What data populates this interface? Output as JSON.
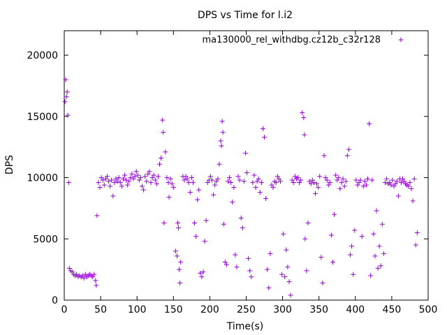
{
  "chart_data": {
    "type": "scatter",
    "title": "DPS vs Time for l.i2",
    "xlabel": "Time(s)",
    "ylabel": "DPS",
    "xlim": [
      0,
      500
    ],
    "ylim": [
      0,
      22000
    ],
    "xticks": [
      0,
      50,
      100,
      150,
      200,
      250,
      300,
      350,
      400,
      450,
      500
    ],
    "yticks": [
      0,
      5000,
      10000,
      15000,
      20000
    ],
    "grid": false,
    "legend_position": "top-right",
    "series": [
      {
        "name": "ma130000_rel_withdbg.cz12b_c32r128",
        "color": "#9400d3",
        "marker": "plus",
        "points": [
          [
            1,
            16200
          ],
          [
            2,
            18000
          ],
          [
            3,
            16600
          ],
          [
            4,
            17000
          ],
          [
            5,
            15100
          ],
          [
            6,
            9600
          ],
          [
            7,
            2600
          ],
          [
            9,
            2400
          ],
          [
            11,
            2300
          ],
          [
            13,
            2100
          ],
          [
            15,
            2000
          ],
          [
            17,
            2100
          ],
          [
            19,
            1900
          ],
          [
            21,
            2000
          ],
          [
            23,
            1900
          ],
          [
            25,
            2000
          ],
          [
            27,
            1800
          ],
          [
            29,
            2100
          ],
          [
            31,
            1900
          ],
          [
            33,
            2000
          ],
          [
            35,
            2100
          ],
          [
            37,
            2000
          ],
          [
            39,
            1900
          ],
          [
            41,
            2100
          ],
          [
            43,
            1600
          ],
          [
            44,
            1200
          ],
          [
            45,
            6900
          ],
          [
            47,
            9600
          ],
          [
            49,
            9200
          ],
          [
            51,
            10000
          ],
          [
            53,
            9800
          ],
          [
            55,
            9400
          ],
          [
            57,
            9900
          ],
          [
            59,
            10100
          ],
          [
            61,
            9700
          ],
          [
            63,
            9300
          ],
          [
            65,
            9800
          ],
          [
            67,
            8500
          ],
          [
            69,
            9600
          ],
          [
            71,
            9900
          ],
          [
            73,
            9700
          ],
          [
            75,
            10000
          ],
          [
            77,
            9600
          ],
          [
            79,
            9300
          ],
          [
            81,
            9900
          ],
          [
            83,
            10200
          ],
          [
            85,
            9800
          ],
          [
            87,
            9400
          ],
          [
            89,
            9700
          ],
          [
            91,
            10000
          ],
          [
            93,
            10300
          ],
          [
            95,
            9900
          ],
          [
            97,
            10100
          ],
          [
            99,
            10500
          ],
          [
            101,
            10200
          ],
          [
            103,
            9800
          ],
          [
            105,
            10000
          ],
          [
            107,
            9300
          ],
          [
            109,
            9000
          ],
          [
            111,
            10100
          ],
          [
            113,
            9700
          ],
          [
            115,
            10300
          ],
          [
            117,
            10500
          ],
          [
            119,
            9600
          ],
          [
            121,
            10000
          ],
          [
            123,
            10200
          ],
          [
            125,
            9800
          ],
          [
            127,
            9500
          ],
          [
            129,
            10100
          ],
          [
            131,
            11100
          ],
          [
            133,
            11600
          ],
          [
            135,
            14700
          ],
          [
            136,
            13700
          ],
          [
            137,
            6300
          ],
          [
            139,
            12100
          ],
          [
            141,
            10000
          ],
          [
            143,
            9600
          ],
          [
            144,
            8400
          ],
          [
            146,
            9900
          ],
          [
            148,
            9500
          ],
          [
            150,
            9200
          ],
          [
            153,
            4000
          ],
          [
            155,
            3600
          ],
          [
            156,
            6300
          ],
          [
            157,
            5900
          ],
          [
            158,
            2500
          ],
          [
            159,
            1400
          ],
          [
            160,
            3100
          ],
          [
            163,
            10100
          ],
          [
            165,
            9800
          ],
          [
            167,
            10100
          ],
          [
            169,
            9900
          ],
          [
            171,
            9600
          ],
          [
            173,
            8800
          ],
          [
            175,
            10000
          ],
          [
            177,
            9600
          ],
          [
            179,
            6300
          ],
          [
            181,
            5200
          ],
          [
            183,
            8200
          ],
          [
            185,
            9000
          ],
          [
            187,
            2200
          ],
          [
            189,
            1900
          ],
          [
            191,
            2300
          ],
          [
            193,
            4800
          ],
          [
            195,
            6500
          ],
          [
            197,
            9600
          ],
          [
            199,
            9800
          ],
          [
            201,
            10100
          ],
          [
            203,
            9800
          ],
          [
            205,
            8600
          ],
          [
            207,
            9400
          ],
          [
            209,
            9700
          ],
          [
            211,
            9900
          ],
          [
            213,
            11100
          ],
          [
            215,
            13000
          ],
          [
            216,
            12600
          ],
          [
            217,
            14600
          ],
          [
            218,
            13700
          ],
          [
            219,
            6200
          ],
          [
            221,
            3100
          ],
          [
            223,
            2900
          ],
          [
            225,
            9700
          ],
          [
            227,
            10000
          ],
          [
            229,
            9600
          ],
          [
            231,
            8000
          ],
          [
            233,
            9200
          ],
          [
            235,
            3700
          ],
          [
            237,
            2700
          ],
          [
            239,
            10100
          ],
          [
            241,
            9800
          ],
          [
            243,
            6700
          ],
          [
            245,
            5900
          ],
          [
            247,
            9700
          ],
          [
            249,
            12000
          ],
          [
            251,
            10400
          ],
          [
            253,
            3400
          ],
          [
            255,
            2400
          ],
          [
            257,
            1900
          ],
          [
            259,
            9600
          ],
          [
            261,
            10200
          ],
          [
            263,
            9200
          ],
          [
            265,
            9700
          ],
          [
            267,
            9900
          ],
          [
            269,
            8800
          ],
          [
            271,
            9600
          ],
          [
            273,
            14000
          ],
          [
            275,
            13300
          ],
          [
            277,
            8300
          ],
          [
            279,
            2500
          ],
          [
            281,
            1000
          ],
          [
            283,
            3800
          ],
          [
            285,
            9400
          ],
          [
            287,
            9200
          ],
          [
            289,
            9700
          ],
          [
            291,
            9600
          ],
          [
            293,
            10100
          ],
          [
            295,
            9900
          ],
          [
            297,
            9700
          ],
          [
            299,
            2100
          ],
          [
            301,
            5400
          ],
          [
            303,
            1900
          ],
          [
            305,
            4100
          ],
          [
            307,
            2700
          ],
          [
            309,
            1500
          ],
          [
            311,
            400
          ],
          [
            313,
            9800
          ],
          [
            315,
            9600
          ],
          [
            317,
            10100
          ],
          [
            319,
            9900
          ],
          [
            321,
            10000
          ],
          [
            323,
            9600
          ],
          [
            325,
            9800
          ],
          [
            327,
            15300
          ],
          [
            329,
            14900
          ],
          [
            330,
            13500
          ],
          [
            331,
            5000
          ],
          [
            333,
            2400
          ],
          [
            335,
            6300
          ],
          [
            337,
            9700
          ],
          [
            339,
            9500
          ],
          [
            341,
            9800
          ],
          [
            343,
            9600
          ],
          [
            345,
            8700
          ],
          [
            347,
            9500
          ],
          [
            349,
            9200
          ],
          [
            351,
            10100
          ],
          [
            353,
            3500
          ],
          [
            355,
            1400
          ],
          [
            357,
            11800
          ],
          [
            359,
            10000
          ],
          [
            361,
            9800
          ],
          [
            363,
            9400
          ],
          [
            365,
            9600
          ],
          [
            367,
            5300
          ],
          [
            369,
            3100
          ],
          [
            371,
            7000
          ],
          [
            373,
            10200
          ],
          [
            375,
            9800
          ],
          [
            377,
            10000
          ],
          [
            379,
            9100
          ],
          [
            381,
            9600
          ],
          [
            383,
            9900
          ],
          [
            385,
            9300
          ],
          [
            387,
            9700
          ],
          [
            389,
            11800
          ],
          [
            391,
            12300
          ],
          [
            393,
            3700
          ],
          [
            395,
            4400
          ],
          [
            397,
            2100
          ],
          [
            399,
            5700
          ],
          [
            401,
            9800
          ],
          [
            403,
            9400
          ],
          [
            405,
            9600
          ],
          [
            407,
            9800
          ],
          [
            409,
            5200
          ],
          [
            411,
            9300
          ],
          [
            413,
            9700
          ],
          [
            415,
            9400
          ],
          [
            417,
            9900
          ],
          [
            419,
            14400
          ],
          [
            421,
            2000
          ],
          [
            423,
            9800
          ],
          [
            425,
            5400
          ],
          [
            427,
            3600
          ],
          [
            429,
            7300
          ],
          [
            431,
            2600
          ],
          [
            433,
            4400
          ],
          [
            435,
            2800
          ],
          [
            437,
            6200
          ],
          [
            439,
            3800
          ],
          [
            441,
            9600
          ],
          [
            443,
            9900
          ],
          [
            445,
            9500
          ],
          [
            447,
            9600
          ],
          [
            449,
            9400
          ],
          [
            451,
            9800
          ],
          [
            453,
            9300
          ],
          [
            455,
            9500
          ],
          [
            457,
            9700
          ],
          [
            459,
            8500
          ],
          [
            461,
            9900
          ],
          [
            463,
            9600
          ],
          [
            465,
            9900
          ],
          [
            467,
            9700
          ],
          [
            469,
            9500
          ],
          [
            471,
            9400
          ],
          [
            473,
            9300
          ],
          [
            475,
            9600
          ],
          [
            477,
            9100
          ],
          [
            479,
            8100
          ],
          [
            481,
            9900
          ],
          [
            483,
            4500
          ],
          [
            485,
            5500
          ]
        ]
      }
    ]
  }
}
